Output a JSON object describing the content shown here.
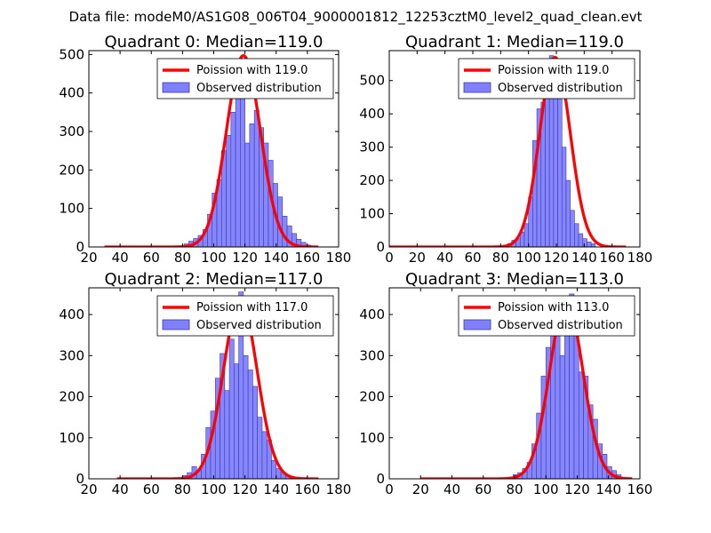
{
  "figure_title": "Data file: modeM0/AS1G08_006T04_9000001812_12253cztM0_level2_quad_clean.evt",
  "colors": {
    "fit_line": "#ff0000",
    "hist_fill": "#8080ff",
    "hist_edge": "#3a3aa8"
  },
  "chart_data": [
    {
      "type": "bar",
      "title": "Quadrant 0: Median=119.0",
      "legend": {
        "line": "Poission with 119.0",
        "hist": "Observed distribution",
        "position": "top-right"
      },
      "xlim": [
        20,
        180
      ],
      "ylim": [
        0,
        510
      ],
      "xticks": [
        20,
        40,
        60,
        80,
        100,
        120,
        140,
        160,
        180
      ],
      "yticks": [
        0,
        100,
        200,
        300,
        400,
        500
      ],
      "fit": {
        "mean": 119,
        "peak": 497,
        "x_range": [
          30,
          167
        ]
      },
      "hist": {
        "start": 81,
        "width": 3,
        "values": [
          8,
          15,
          22,
          30,
          45,
          85,
          140,
          175,
          250,
          290,
          350,
          425,
          400,
          270,
          320,
          355,
          310,
          270,
          225,
          165,
          130,
          80,
          55,
          35,
          20,
          12,
          5,
          3
        ]
      }
    },
    {
      "type": "bar",
      "title": "Quadrant 1: Median=119.0",
      "legend": {
        "line": "Poission with 119.0",
        "hist": "Observed distribution",
        "position": "top-right"
      },
      "xlim": [
        0,
        180
      ],
      "ylim": [
        0,
        590
      ],
      "xticks": [
        0,
        20,
        40,
        60,
        80,
        100,
        120,
        140,
        160,
        180
      ],
      "yticks": [
        0,
        100,
        200,
        300,
        400,
        500
      ],
      "fit": {
        "mean": 119,
        "peak": 570,
        "x_range": [
          0,
          170
        ]
      },
      "hist": {
        "start": 85,
        "width": 3,
        "values": [
          10,
          20,
          25,
          45,
          70,
          150,
          320,
          415,
          435,
          500,
          575,
          450,
          550,
          300,
          200,
          110,
          70,
          40,
          25,
          15,
          10
        ]
      }
    },
    {
      "type": "bar",
      "title": "Quadrant 2: Median=117.0",
      "legend": {
        "line": "Poission with 117.0",
        "hist": "Observed distribution",
        "position": "top-right"
      },
      "xlim": [
        20,
        180
      ],
      "ylim": [
        0,
        465
      ],
      "xticks": [
        20,
        40,
        60,
        80,
        100,
        120,
        140,
        160,
        180
      ],
      "yticks": [
        0,
        100,
        200,
        300,
        400
      ],
      "fit": {
        "mean": 117,
        "peak": 435,
        "x_range": [
          38,
          167
        ]
      },
      "hist": {
        "start": 80,
        "width": 3,
        "values": [
          8,
          15,
          30,
          20,
          60,
          125,
          165,
          245,
          305,
          215,
          340,
          280,
          455,
          300,
          265,
          225,
          150,
          115,
          95,
          45,
          25,
          15,
          8,
          5,
          3
        ]
      }
    },
    {
      "type": "bar",
      "title": "Quadrant 3: Median=113.0",
      "legend": {
        "line": "Poission with 113.0",
        "hist": "Observed distribution",
        "position": "top-right"
      },
      "xlim": [
        0,
        160
      ],
      "ylim": [
        0,
        465
      ],
      "xticks": [
        0,
        20,
        40,
        60,
        80,
        100,
        120,
        140,
        160
      ],
      "yticks": [
        0,
        100,
        200,
        300,
        400
      ],
      "fit": {
        "mean": 113,
        "peak": 433,
        "x_range": [
          20,
          155
        ]
      },
      "hist": {
        "start": 79,
        "width": 3,
        "values": [
          10,
          15,
          25,
          40,
          85,
          160,
          250,
          320,
          380,
          430,
          300,
          430,
          450,
          400,
          260,
          250,
          180,
          145,
          85,
          60,
          30,
          20,
          10
        ]
      }
    }
  ]
}
